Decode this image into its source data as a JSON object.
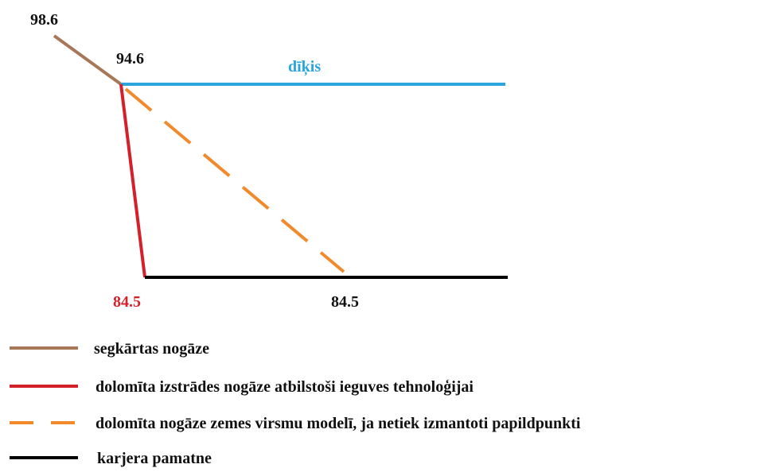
{
  "diagram": {
    "labels": {
      "top": "98.6",
      "crest": "94.6",
      "pond": "dīķis",
      "bottom_left": "84.5",
      "bottom_right": "84.5"
    },
    "legend": [
      "segkārtas nogāze",
      "dolomīta izstrādes nogāze atbilstoši ieguves tehnoloģijai",
      "dolomīta nogāze zemes virsmu modelī, ja netiek izmantoti papildpunkti",
      "karjera pamatne"
    ]
  }
}
